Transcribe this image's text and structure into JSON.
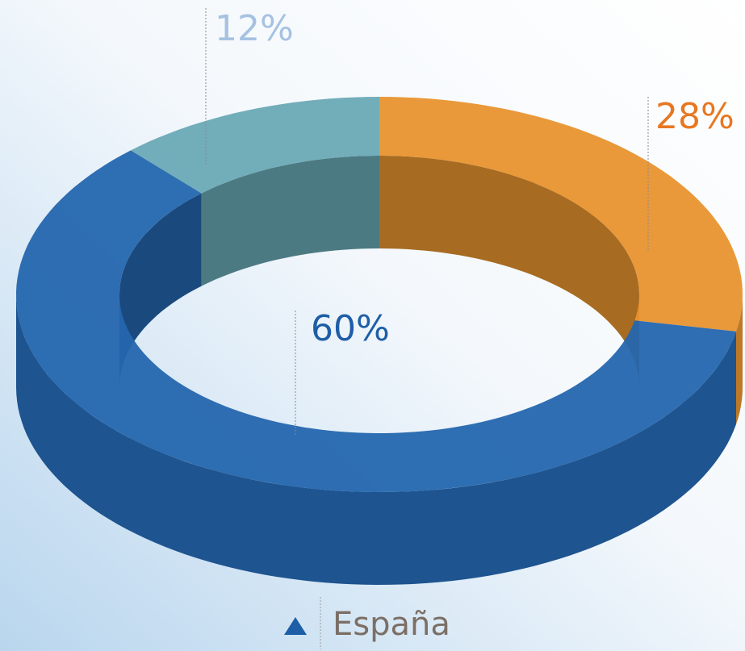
{
  "chart_data": {
    "type": "donut3d",
    "title": "España",
    "values": [
      60,
      28,
      12
    ],
    "value_labels": [
      "60%",
      "28%",
      "12%"
    ],
    "colors": [
      "#2466ae",
      "#e8942f",
      "#6aa9b6"
    ],
    "label_colors": [
      "#1d5ea6",
      "#e87722",
      "#a6c2e2"
    ]
  }
}
